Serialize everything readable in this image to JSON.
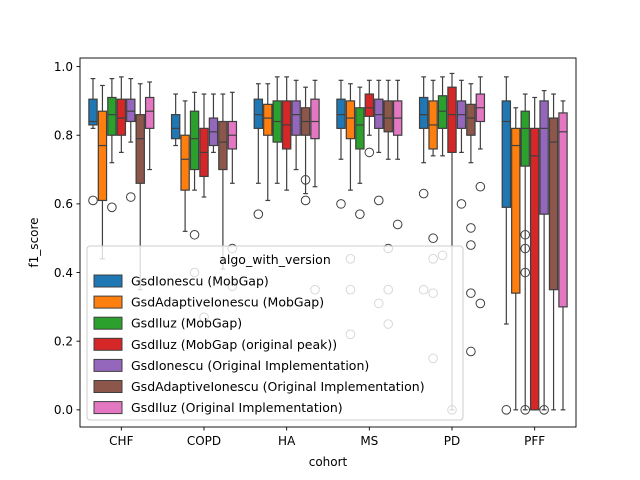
{
  "chart_data": {
    "type": "box",
    "xlabel": "cohort",
    "ylabel": "f1_score",
    "ylim": [
      -0.05,
      1.025
    ],
    "yticks": [
      0.0,
      0.2,
      0.4,
      0.6,
      0.8,
      1.0
    ],
    "ytick_labels": [
      "0.0",
      "0.2",
      "0.4",
      "0.6",
      "0.8",
      "1.0"
    ],
    "categories": [
      "CHF",
      "COPD",
      "HA",
      "MS",
      "PD",
      "PFF"
    ],
    "grid": false,
    "legend": {
      "title": "algo_with_version",
      "position": "lower-left"
    },
    "series": [
      {
        "name": "GsdIonescu (MobGap)",
        "color": "#1f77b4",
        "boxes": [
          {
            "whislo": 0.82,
            "q1": 0.83,
            "med": 0.84,
            "q3": 0.905,
            "whishi": 0.965,
            "fliers": [
              0.61
            ]
          },
          {
            "whislo": 0.77,
            "q1": 0.79,
            "med": 0.82,
            "q3": 0.86,
            "whishi": 0.92,
            "fliers": []
          },
          {
            "whislo": 0.66,
            "q1": 0.82,
            "med": 0.86,
            "q3": 0.905,
            "whishi": 0.95,
            "fliers": [
              0.57
            ]
          },
          {
            "whislo": 0.73,
            "q1": 0.82,
            "med": 0.86,
            "q3": 0.905,
            "whishi": 0.96,
            "fliers": [
              0.6
            ]
          },
          {
            "whislo": 0.72,
            "q1": 0.82,
            "med": 0.86,
            "q3": 0.91,
            "whishi": 0.97,
            "fliers": [
              0.63,
              0.35
            ]
          },
          {
            "whislo": 0.25,
            "q1": 0.59,
            "med": 0.84,
            "q3": 0.9,
            "whishi": 0.97,
            "fliers": [
              0.0
            ]
          }
        ]
      },
      {
        "name": "GsdAdaptiveIonescu (MobGap)",
        "color": "#ff7f0e",
        "boxes": [
          {
            "whislo": 0.44,
            "q1": 0.61,
            "med": 0.77,
            "q3": 0.87,
            "whishi": 0.945,
            "fliers": []
          },
          {
            "whislo": 0.52,
            "q1": 0.64,
            "med": 0.73,
            "q3": 0.8,
            "whishi": 0.9,
            "fliers": []
          },
          {
            "whislo": 0.61,
            "q1": 0.8,
            "med": 0.85,
            "q3": 0.89,
            "whishi": 0.95,
            "fliers": []
          },
          {
            "whislo": 0.64,
            "q1": 0.79,
            "med": 0.85,
            "q3": 0.9,
            "whishi": 0.95,
            "fliers": [
              0.44,
              0.35,
              0.22
            ]
          },
          {
            "whislo": 0.74,
            "q1": 0.76,
            "med": 0.83,
            "q3": 0.9,
            "whishi": 0.96,
            "fliers": [
              0.5,
              0.44,
              0.34,
              0.15
            ]
          },
          {
            "whislo": 0.0,
            "q1": 0.34,
            "med": 0.77,
            "q3": 0.82,
            "whishi": 0.88,
            "fliers": []
          }
        ]
      },
      {
        "name": "GsdIluz (MobGap)",
        "color": "#2ca02c",
        "boxes": [
          {
            "whislo": 0.72,
            "q1": 0.8,
            "med": 0.86,
            "q3": 0.91,
            "whishi": 0.965,
            "fliers": [
              0.59
            ]
          },
          {
            "whislo": 0.64,
            "q1": 0.7,
            "med": 0.79,
            "q3": 0.87,
            "whishi": 0.925,
            "fliers": [
              0.51,
              0.4
            ]
          },
          {
            "whislo": 0.66,
            "q1": 0.78,
            "med": 0.84,
            "q3": 0.9,
            "whishi": 0.97,
            "fliers": []
          },
          {
            "whislo": 0.66,
            "q1": 0.76,
            "med": 0.83,
            "q3": 0.88,
            "whishi": 0.94,
            "fliers": [
              0.57
            ]
          },
          {
            "whislo": 0.74,
            "q1": 0.82,
            "med": 0.87,
            "q3": 0.915,
            "whishi": 0.97,
            "fliers": [
              0.45
            ]
          },
          {
            "whislo": 0.0,
            "q1": 0.71,
            "med": 0.82,
            "q3": 0.87,
            "whishi": 0.92,
            "fliers": [
              0.51,
              0.47,
              0.4,
              0.0
            ]
          }
        ]
      },
      {
        "name": "GsdIluz (MobGap (original peak))",
        "color": "#d62728",
        "boxes": [
          {
            "whislo": 0.75,
            "q1": 0.8,
            "med": 0.85,
            "q3": 0.905,
            "whishi": 0.97,
            "fliers": []
          },
          {
            "whislo": 0.62,
            "q1": 0.68,
            "med": 0.75,
            "q3": 0.82,
            "whishi": 0.92,
            "fliers": [
              0.27
            ]
          },
          {
            "whislo": 0.64,
            "q1": 0.76,
            "med": 0.83,
            "q3": 0.9,
            "whishi": 0.97,
            "fliers": []
          },
          {
            "whislo": 0.8,
            "q1": 0.855,
            "med": 0.88,
            "q3": 0.92,
            "whishi": 0.96,
            "fliers": [
              0.75
            ]
          },
          {
            "whislo": 0.0,
            "q1": 0.75,
            "med": 0.86,
            "q3": 0.94,
            "whishi": 0.98,
            "fliers": [
              0.0
            ]
          },
          {
            "whislo": 0.0,
            "q1": 0.0,
            "med": 0.74,
            "q3": 0.82,
            "whishi": 0.91,
            "fliers": []
          }
        ]
      },
      {
        "name": "GsdIonescu (Original Implementation)",
        "color": "#9467bd",
        "boxes": [
          {
            "whislo": 0.78,
            "q1": 0.84,
            "med": 0.87,
            "q3": 0.905,
            "whishi": 0.965,
            "fliers": [
              0.62
            ]
          },
          {
            "whislo": 0.75,
            "q1": 0.77,
            "med": 0.81,
            "q3": 0.85,
            "whishi": 0.92,
            "fliers": []
          },
          {
            "whislo": 0.7,
            "q1": 0.8,
            "med": 0.86,
            "q3": 0.9,
            "whishi": 0.96,
            "fliers": []
          },
          {
            "whislo": 0.75,
            "q1": 0.82,
            "med": 0.86,
            "q3": 0.905,
            "whishi": 0.96,
            "fliers": [
              0.61,
              0.31
            ]
          },
          {
            "whislo": 0.75,
            "q1": 0.82,
            "med": 0.86,
            "q3": 0.9,
            "whishi": 0.96,
            "fliers": [
              0.6
            ]
          },
          {
            "whislo": 0.0,
            "q1": 0.57,
            "med": 0.82,
            "q3": 0.9,
            "whishi": 0.93,
            "fliers": [
              0.0
            ]
          }
        ]
      },
      {
        "name": "GsdAdaptiveIonescu (Original Implementation)",
        "color": "#8c564b",
        "boxes": [
          {
            "whislo": 0.35,
            "q1": 0.66,
            "med": 0.79,
            "q3": 0.86,
            "whishi": 0.95,
            "fliers": []
          },
          {
            "whislo": 0.41,
            "q1": 0.7,
            "med": 0.78,
            "q3": 0.84,
            "whishi": 0.92,
            "fliers": []
          },
          {
            "whislo": 0.63,
            "q1": 0.8,
            "med": 0.84,
            "q3": 0.88,
            "whishi": 0.94,
            "fliers": [
              0.67,
              0.61
            ]
          },
          {
            "whislo": 0.73,
            "q1": 0.81,
            "med": 0.85,
            "q3": 0.9,
            "whishi": 0.96,
            "fliers": [
              0.47,
              0.35,
              0.25
            ]
          },
          {
            "whislo": 0.72,
            "q1": 0.8,
            "med": 0.85,
            "q3": 0.89,
            "whishi": 0.95,
            "fliers": [
              0.53,
              0.48,
              0.34,
              0.17
            ]
          },
          {
            "whislo": 0.0,
            "q1": 0.35,
            "med": 0.78,
            "q3": 0.85,
            "whishi": 0.92,
            "fliers": []
          }
        ]
      },
      {
        "name": "GsdIluz (Original Implementation)",
        "color": "#e377c2",
        "boxes": [
          {
            "whislo": 0.7,
            "q1": 0.82,
            "med": 0.87,
            "q3": 0.91,
            "whishi": 0.955,
            "fliers": []
          },
          {
            "whislo": 0.66,
            "q1": 0.76,
            "med": 0.8,
            "q3": 0.84,
            "whishi": 0.925,
            "fliers": [
              0.47,
              0.36
            ]
          },
          {
            "whislo": 0.65,
            "q1": 0.79,
            "med": 0.84,
            "q3": 0.905,
            "whishi": 0.96,
            "fliers": [
              0.35
            ]
          },
          {
            "whislo": 0.73,
            "q1": 0.8,
            "med": 0.85,
            "q3": 0.9,
            "whishi": 0.96,
            "fliers": [
              0.54
            ]
          },
          {
            "whislo": 0.76,
            "q1": 0.84,
            "med": 0.88,
            "q3": 0.92,
            "whishi": 0.97,
            "fliers": [
              0.65,
              0.31
            ]
          },
          {
            "whislo": 0.0,
            "q1": 0.3,
            "med": 0.81,
            "q3": 0.865,
            "whishi": 0.9,
            "fliers": []
          }
        ]
      }
    ]
  }
}
